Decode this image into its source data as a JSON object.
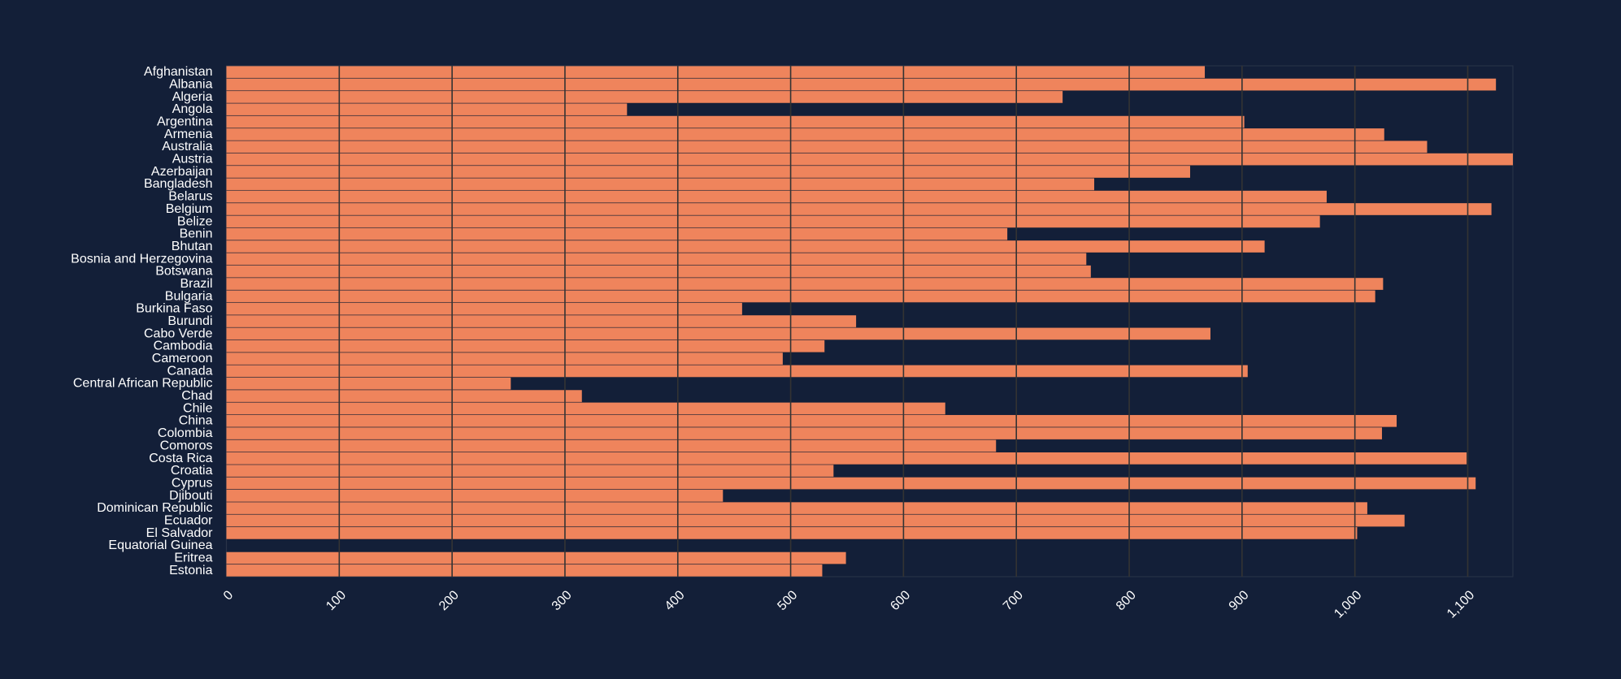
{
  "colors": {
    "background": "#131f38",
    "bar": "#ef845c",
    "grid": "#333333",
    "text": "#ffffff"
  },
  "chart_data": {
    "type": "bar",
    "orientation": "horizontal",
    "title": "",
    "xlabel": "",
    "ylabel": "",
    "xlim": [
      0,
      1140
    ],
    "x_ticks": [
      0,
      100,
      200,
      300,
      400,
      500,
      600,
      700,
      800,
      900,
      1000,
      1100
    ],
    "x_tick_labels": [
      "0",
      "100",
      "200",
      "300",
      "400",
      "500",
      "600",
      "700",
      "800",
      "900",
      "1,000",
      "1,100"
    ],
    "grid": true,
    "categories": [
      "Afghanistan",
      "Albania",
      "Algeria",
      "Angola",
      "Argentina",
      "Armenia",
      "Australia",
      "Austria",
      "Azerbaijan",
      "Bangladesh",
      "Belarus",
      "Belgium",
      "Belize",
      "Benin",
      "Bhutan",
      "Bosnia and Herzegovina",
      "Botswana",
      "Brazil",
      "Bulgaria",
      "Burkina Faso",
      "Burundi",
      "Cabo Verde",
      "Cambodia",
      "Cameroon",
      "Canada",
      "Central African Republic",
      "Chad",
      "Chile",
      "China",
      "Colombia",
      "Comoros",
      "Costa Rica",
      "Croatia",
      "Cyprus",
      "Djibouti",
      "Dominican Republic",
      "Ecuador",
      "El Salvador",
      "Equatorial Guinea",
      "Eritrea",
      "Estonia"
    ],
    "values": [
      867,
      1125,
      741,
      355,
      902,
      1026,
      1064,
      1140,
      854,
      769,
      975,
      1121,
      969,
      692,
      920,
      762,
      766,
      1025,
      1018,
      457,
      558,
      872,
      530,
      493,
      905,
      252,
      315,
      637,
      1037,
      1024,
      682,
      1099,
      538,
      1107,
      440,
      1011,
      1044,
      1002,
      0,
      549,
      528
    ]
  }
}
